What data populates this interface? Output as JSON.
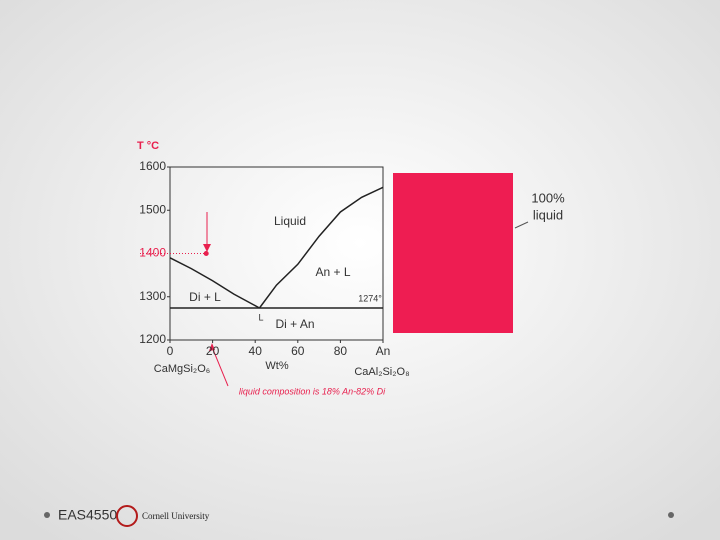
{
  "chart_data": {
    "type": "line",
    "y_label": "T °C",
    "x_label": "Wt%",
    "x_left_label": "CaMgSi₂O₆",
    "x_right_label": "CaAl₂Si₂O₈",
    "annotations": [
      "Liquid",
      "An + L",
      "Di + L",
      "Di + An",
      "1274°",
      "L"
    ],
    "note": "liquid composition is 18% An-82% Di",
    "xlim": [
      0,
      100
    ],
    "ylim": [
      1200,
      1600
    ],
    "xticks": [
      0,
      20,
      40,
      60,
      80,
      {
        "value": 100,
        "label": "An"
      }
    ],
    "yticks": [
      1200,
      1300,
      {
        "value": 1400,
        "label": "1400",
        "color": "#e8204e"
      },
      1500,
      1600
    ],
    "series": [
      {
        "color": "#222222",
        "x": [
          0,
          10,
          20,
          30,
          42
        ],
        "values": [
          1390,
          1365,
          1337,
          1306,
          1274
        ]
      },
      {
        "color": "#222222",
        "x": [
          42,
          50,
          60,
          70,
          80,
          90,
          100
        ],
        "values": [
          1274,
          1327,
          1375,
          1440,
          1496,
          1530,
          1553
        ]
      },
      {
        "color": "#222222",
        "x": [
          0,
          100
        ],
        "values": [
          1274,
          1274
        ]
      },
      {
        "color": "#e8204e",
        "x": [
          17
        ],
        "values": [
          1400
        ]
      }
    ]
  },
  "side": {
    "label_1": "100%",
    "label_2": "liquid",
    "box_color": "#ee1d52"
  },
  "footer": {
    "course": "EAS4550",
    "university": "Cornell University"
  }
}
